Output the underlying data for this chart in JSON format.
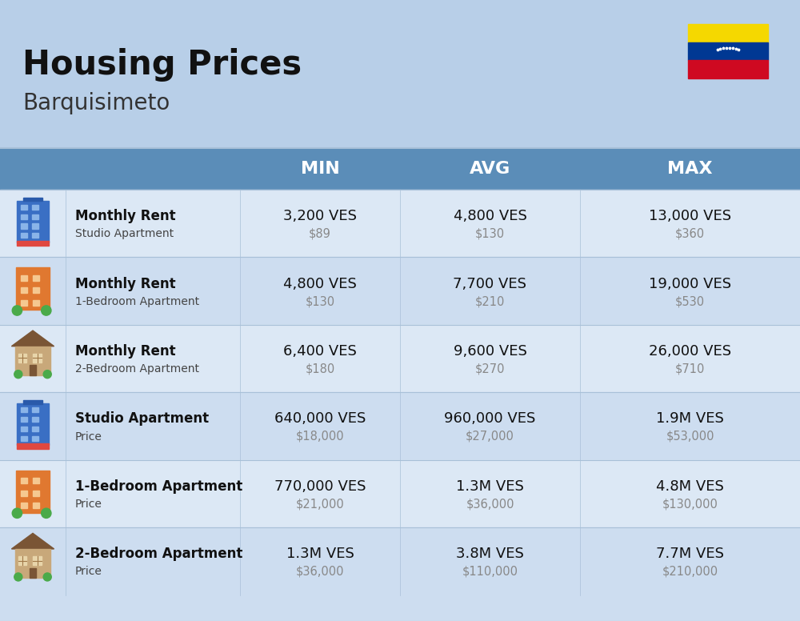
{
  "title": "Housing Prices",
  "subtitle": "Barquisimeto",
  "bg_color": "#b8cfe8",
  "header_bg": "#5b8db8",
  "header_text": "#ffffff",
  "row_bg_even": "#cdddf0",
  "row_bg_odd": "#dce8f5",
  "col_headers": [
    "MIN",
    "AVG",
    "MAX"
  ],
  "rows": [
    {
      "label_bold": "Monthly Rent",
      "label_sub": "Studio Apartment",
      "min_ves": "3,200 VES",
      "min_usd": "$89",
      "avg_ves": "4,800 VES",
      "avg_usd": "$130",
      "max_ves": "13,000 VES",
      "max_usd": "$360",
      "icon_type": "studio_blue"
    },
    {
      "label_bold": "Monthly Rent",
      "label_sub": "1-Bedroom Apartment",
      "min_ves": "4,800 VES",
      "min_usd": "$130",
      "avg_ves": "7,700 VES",
      "avg_usd": "$210",
      "max_ves": "19,000 VES",
      "max_usd": "$530",
      "icon_type": "bedroom1_orange"
    },
    {
      "label_bold": "Monthly Rent",
      "label_sub": "2-Bedroom Apartment",
      "min_ves": "6,400 VES",
      "min_usd": "$180",
      "avg_ves": "9,600 VES",
      "avg_usd": "$270",
      "max_ves": "26,000 VES",
      "max_usd": "$710",
      "icon_type": "bedroom2_beige"
    },
    {
      "label_bold": "Studio Apartment",
      "label_sub": "Price",
      "min_ves": "640,000 VES",
      "min_usd": "$18,000",
      "avg_ves": "960,000 VES",
      "avg_usd": "$27,000",
      "max_ves": "1.9M VES",
      "max_usd": "$53,000",
      "icon_type": "studio_blue"
    },
    {
      "label_bold": "1-Bedroom Apartment",
      "label_sub": "Price",
      "min_ves": "770,000 VES",
      "min_usd": "$21,000",
      "avg_ves": "1.3M VES",
      "avg_usd": "$36,000",
      "max_ves": "4.8M VES",
      "max_usd": "$130,000",
      "icon_type": "bedroom1_orange"
    },
    {
      "label_bold": "2-Bedroom Apartment",
      "label_sub": "Price",
      "min_ves": "1.3M VES",
      "min_usd": "$36,000",
      "avg_ves": "3.8M VES",
      "avg_usd": "$110,000",
      "max_ves": "7.7M VES",
      "max_usd": "$210,000",
      "icon_type": "bedroom2_beige"
    }
  ],
  "flag_yellow": "#f5d800",
  "flag_blue": "#003893",
  "flag_red": "#cf0921"
}
